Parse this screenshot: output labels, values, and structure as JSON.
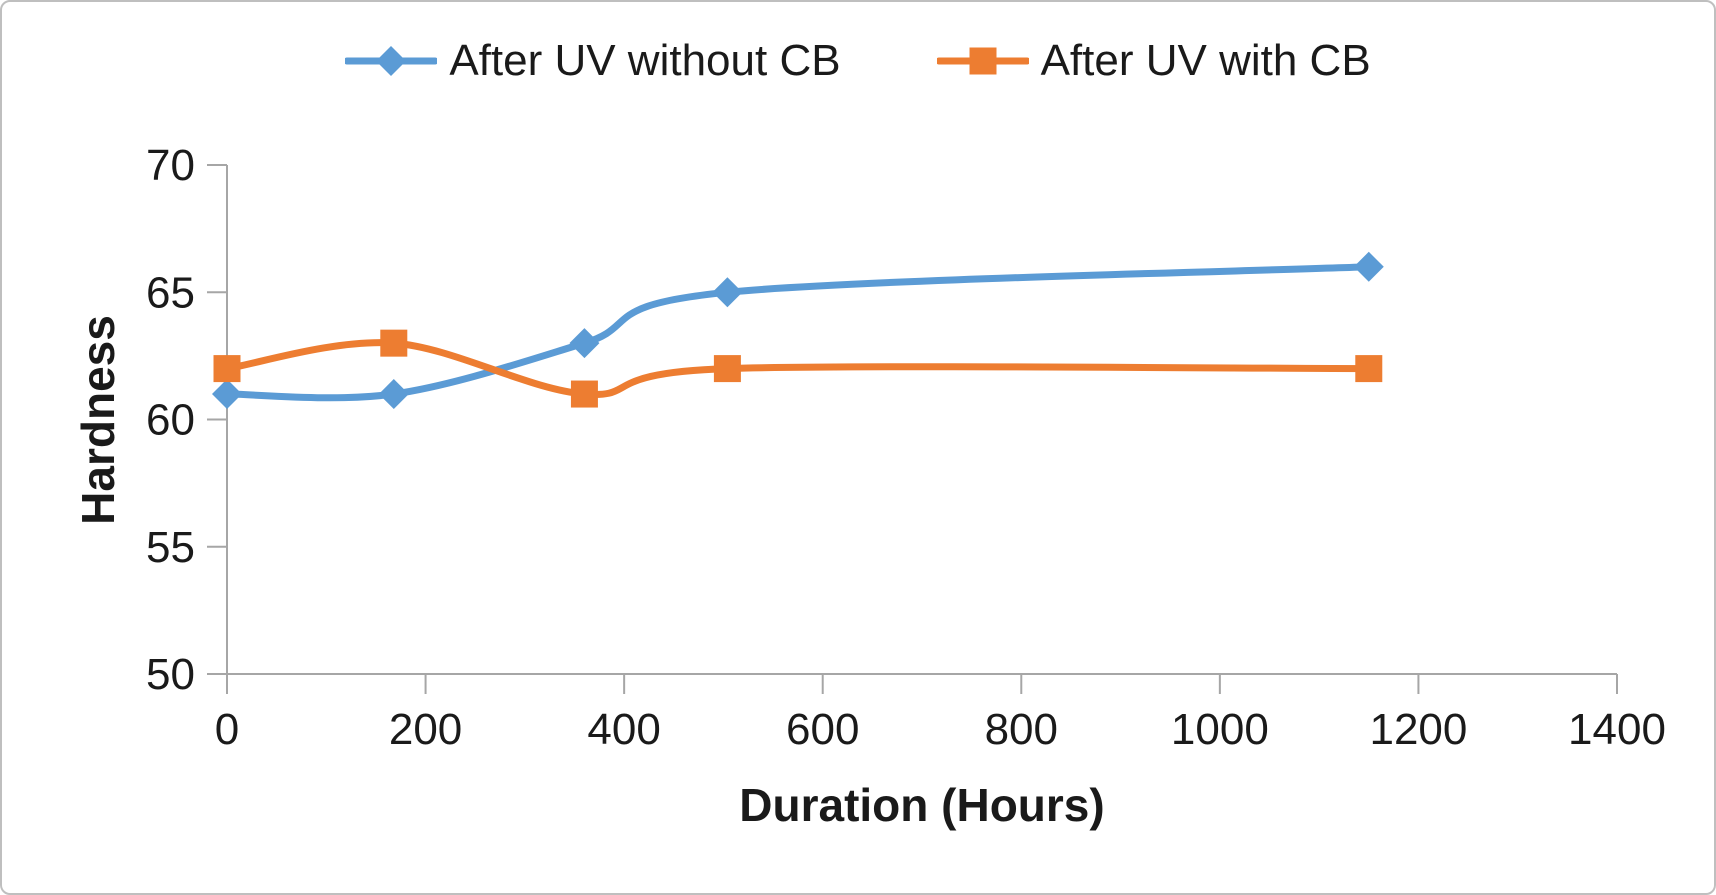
{
  "frame": {
    "background": "#FFFFFF",
    "border_color": "#BFBFBF"
  },
  "chart_data": {
    "type": "line",
    "x": [
      0,
      168,
      360,
      504,
      1150
    ],
    "series": [
      {
        "name": "After UV without CB",
        "values": [
          61,
          61,
          63,
          65,
          66
        ],
        "color": "#5B9BD5",
        "marker": "diamond"
      },
      {
        "name": "After UV with CB",
        "values": [
          62,
          63,
          61,
          62,
          62
        ],
        "color": "#ED7D31",
        "marker": "square"
      }
    ],
    "title": "",
    "xlabel": "Duration (Hours)",
    "ylabel": "Hardness",
    "xlim": [
      0,
      1400
    ],
    "ylim": [
      50,
      70
    ],
    "xticks": [
      0,
      200,
      400,
      600,
      800,
      1000,
      1200,
      1400
    ],
    "yticks": [
      50,
      55,
      60,
      65,
      70
    ],
    "grid": false,
    "smooth": true,
    "legend_position": "top-center",
    "axis_color": "#A6A6A6",
    "text_color": "#1a1a1a"
  }
}
